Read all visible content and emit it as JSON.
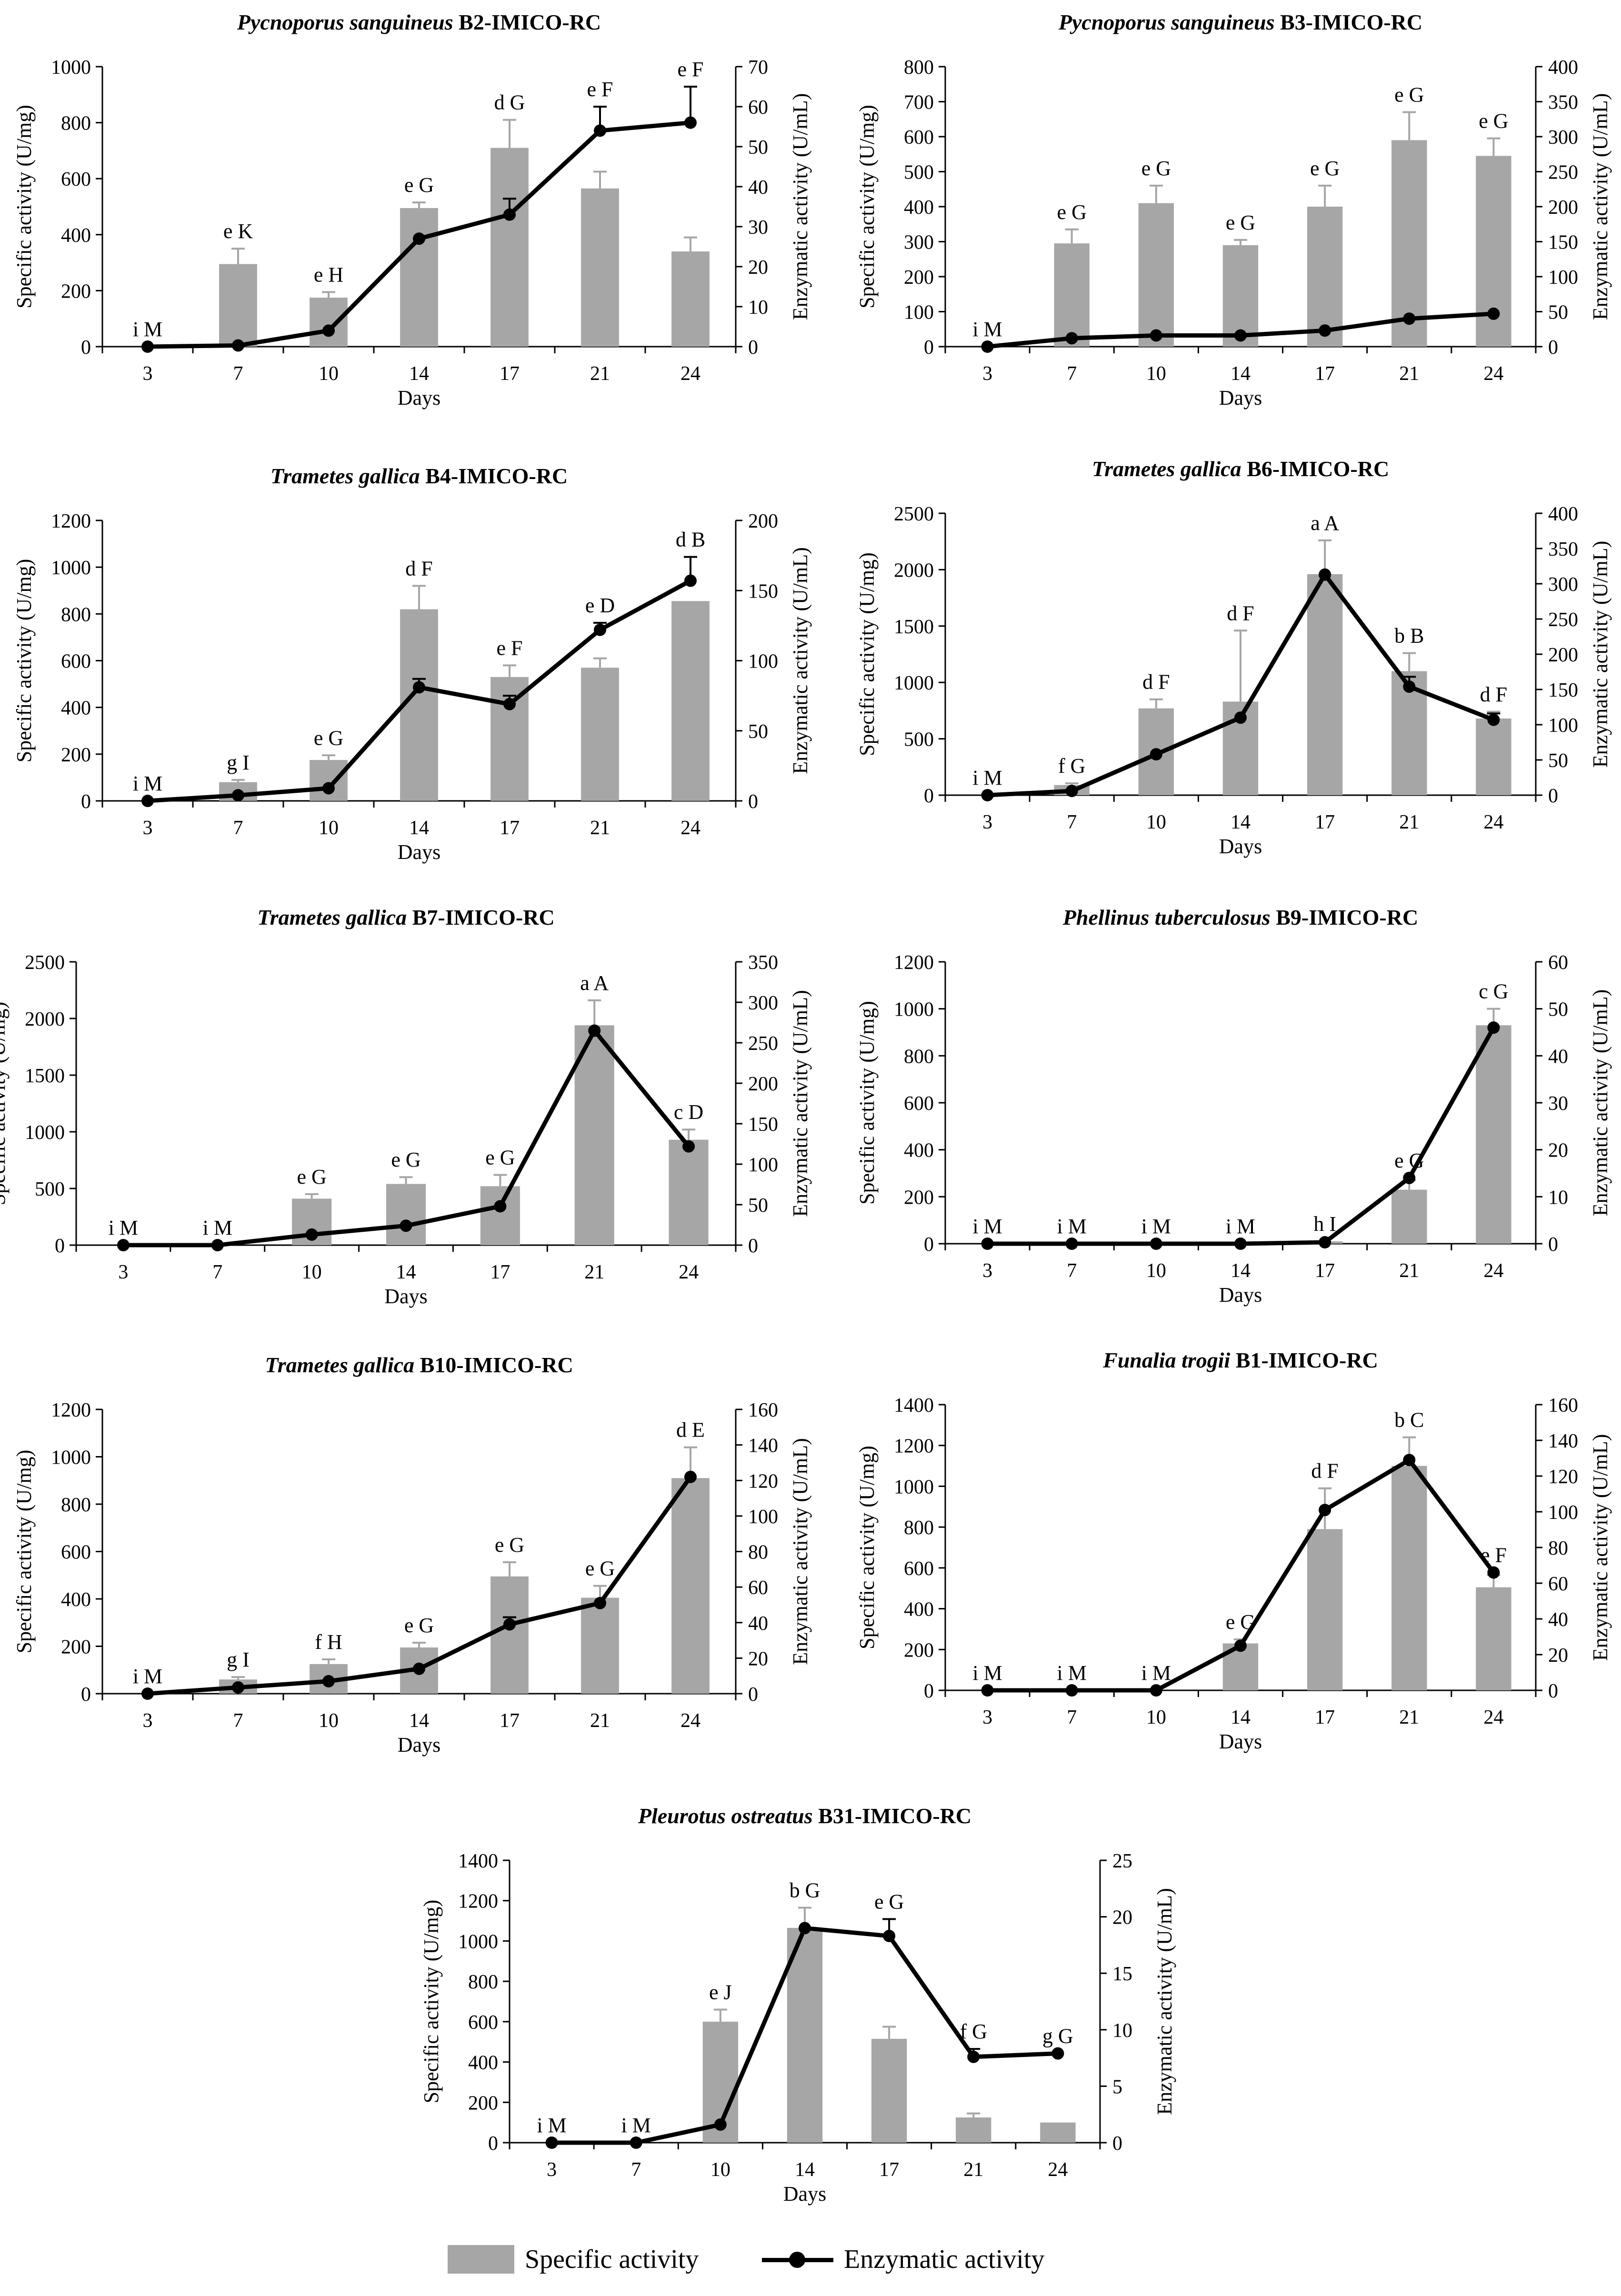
{
  "figure": {
    "legend": {
      "specific_label": "Specific activity",
      "enzymatic_label": "Enzymatic activity"
    }
  },
  "chart_data": [
    {
      "type": "bar+line",
      "title_italic": "Pycnoporus sanguineus",
      "title_bold": "B2-IMICO-RC",
      "xlabel": "Days",
      "ylabel_left": "Specific activity (U/mg)",
      "ylabel_right": "Enzymatic activity (U/mL)",
      "categories": [
        "3",
        "7",
        "10",
        "14",
        "17",
        "21",
        "24"
      ],
      "ylim_left": [
        0,
        1000
      ],
      "yticks_left": [
        0,
        200,
        400,
        600,
        800,
        1000
      ],
      "ylim_right": [
        0,
        70
      ],
      "yticks_right": [
        0,
        10,
        20,
        30,
        40,
        50,
        60,
        70
      ],
      "series": [
        {
          "name": "Specific activity",
          "axis": "left",
          "values": [
            0,
            295,
            175,
            495,
            710,
            565,
            340
          ],
          "errors": [
            0,
            55,
            20,
            20,
            100,
            60,
            50
          ],
          "labels": [
            "i",
            "e",
            "e",
            "e",
            "d",
            "e",
            "e"
          ]
        },
        {
          "name": "Enzymatic activity",
          "axis": "right",
          "values": [
            0,
            0.3,
            4,
            27,
            33,
            54,
            56
          ],
          "errors": [
            0,
            0,
            0,
            0,
            4,
            6,
            9
          ],
          "labels": [
            "M",
            "K",
            "H",
            "G",
            "G",
            "F",
            "F"
          ]
        }
      ]
    },
    {
      "type": "bar+line",
      "title_italic": "Pycnoporus sanguineus",
      "title_bold": "B3-IMICO-RC",
      "xlabel": "Days",
      "ylabel_left": "Specific activity (U/mg)",
      "ylabel_right": "Enzymatic activity (U/mL)",
      "categories": [
        "3",
        "7",
        "10",
        "14",
        "17",
        "21",
        "24"
      ],
      "ylim_left": [
        0,
        800
      ],
      "yticks_left": [
        0,
        100,
        200,
        300,
        400,
        500,
        600,
        700,
        800
      ],
      "ylim_right": [
        0,
        400
      ],
      "yticks_right": [
        0,
        50,
        100,
        150,
        200,
        250,
        300,
        350,
        400
      ],
      "series": [
        {
          "name": "Specific activity",
          "axis": "left",
          "values": [
            0,
            295,
            410,
            290,
            400,
            590,
            545
          ],
          "errors": [
            0,
            40,
            50,
            15,
            60,
            80,
            50
          ],
          "labels": [
            "i",
            "e",
            "e",
            "e",
            "e",
            "e",
            "e"
          ]
        },
        {
          "name": "Enzymatic activity",
          "axis": "right",
          "values": [
            0,
            12,
            16,
            16,
            23,
            40,
            47
          ],
          "errors": [
            0,
            0,
            0,
            0,
            0,
            0,
            0
          ],
          "labels": [
            "M",
            "G",
            "G",
            "G",
            "G",
            "G",
            "G"
          ]
        }
      ]
    },
    {
      "type": "bar+line",
      "title_italic": "Trametes gallica",
      "title_bold": "B4-IMICO-RC",
      "xlabel": "Days",
      "ylabel_left": "Specific activity (U/mg)",
      "ylabel_right": "Enzymatic activity (U/mL)",
      "categories": [
        "3",
        "7",
        "10",
        "14",
        "17",
        "21",
        "24"
      ],
      "ylim_left": [
        0,
        1200
      ],
      "yticks_left": [
        0,
        200,
        400,
        600,
        800,
        1000,
        1200
      ],
      "ylim_right": [
        0,
        200
      ],
      "yticks_right": [
        0,
        50,
        100,
        150,
        200
      ],
      "series": [
        {
          "name": "Specific activity",
          "axis": "left",
          "values": [
            0,
            80,
            175,
            820,
            530,
            570,
            855
          ],
          "errors": [
            0,
            10,
            20,
            100,
            50,
            40,
            0
          ],
          "labels": [
            "i",
            "g",
            "e",
            "d",
            "e",
            "e",
            "d"
          ]
        },
        {
          "name": "Enzymatic activity",
          "axis": "right",
          "values": [
            0,
            4,
            9,
            81,
            69,
            122,
            157
          ],
          "errors": [
            0,
            0,
            0,
            6,
            6,
            5,
            17
          ],
          "labels": [
            "M",
            "I",
            "G",
            "F",
            "F",
            "D",
            "B"
          ]
        }
      ]
    },
    {
      "type": "bar+line",
      "title_italic": "Trametes gallica",
      "title_bold": "B6-IMICO-RC",
      "xlabel": "Days",
      "ylabel_left": "Specific activity (U/mg)",
      "ylabel_right": "Enzymatic activity (U/mL)",
      "categories": [
        "3",
        "7",
        "10",
        "14",
        "17",
        "21",
        "24"
      ],
      "ylim_left": [
        0,
        2500
      ],
      "yticks_left": [
        0,
        500,
        1000,
        1500,
        2000,
        2500
      ],
      "ylim_right": [
        0,
        400
      ],
      "yticks_right": [
        0,
        50,
        100,
        150,
        200,
        250,
        300,
        350,
        400
      ],
      "series": [
        {
          "name": "Specific activity",
          "axis": "left",
          "values": [
            0,
            90,
            770,
            830,
            1960,
            1100,
            680
          ],
          "errors": [
            0,
            15,
            80,
            630,
            300,
            160,
            60
          ],
          "labels": [
            "i",
            "f",
            "d",
            "d",
            "a",
            "b",
            "d"
          ]
        },
        {
          "name": "Enzymatic activity",
          "axis": "right",
          "values": [
            0,
            6,
            58,
            110,
            313,
            154,
            107
          ],
          "errors": [
            0,
            0,
            0,
            0,
            0,
            14,
            9
          ],
          "labels": [
            "M",
            "G",
            "F",
            "F",
            "A",
            "B",
            "F"
          ]
        }
      ]
    },
    {
      "type": "bar+line",
      "title_italic": "Trametes gallica",
      "title_bold": "B7-IMICO-RC",
      "xlabel": "Days",
      "ylabel_left": "Specific activity (U/mg)",
      "ylabel_right": "Enzymatic activity (U/mL)",
      "categories": [
        "3",
        "7",
        "10",
        "14",
        "17",
        "21",
        "24"
      ],
      "ylim_left": [
        0,
        2500
      ],
      "yticks_left": [
        0,
        500,
        1000,
        1500,
        2000,
        2500
      ],
      "ylim_right": [
        0,
        350
      ],
      "yticks_right": [
        0,
        50,
        100,
        150,
        200,
        250,
        300,
        350
      ],
      "series": [
        {
          "name": "Specific activity",
          "axis": "left",
          "values": [
            0,
            0,
            410,
            540,
            520,
            1940,
            930
          ],
          "errors": [
            0,
            0,
            40,
            60,
            100,
            220,
            90
          ],
          "labels": [
            "i",
            "i",
            "e",
            "e",
            "e",
            "a",
            "c"
          ]
        },
        {
          "name": "Enzymatic activity",
          "axis": "right",
          "values": [
            0,
            0,
            13,
            24,
            48,
            265,
            122
          ],
          "errors": [
            0,
            0,
            0,
            0,
            0,
            0,
            0
          ],
          "labels": [
            "M",
            "M",
            "G",
            "G",
            "G",
            "A",
            "D"
          ]
        }
      ]
    },
    {
      "type": "bar+line",
      "title_italic": "Phellinus tuberculosus",
      "title_bold": "B9-IMICO-RC",
      "xlabel": "Days",
      "ylabel_left": "Specific activity (U/mg)",
      "ylabel_right": "Enzymatic activity (U/mL)",
      "categories": [
        "3",
        "7",
        "10",
        "14",
        "17",
        "21",
        "24"
      ],
      "ylim_left": [
        0,
        1200
      ],
      "yticks_left": [
        0,
        200,
        400,
        600,
        800,
        1000,
        1200
      ],
      "ylim_right": [
        0,
        60
      ],
      "yticks_right": [
        0,
        10,
        20,
        30,
        40,
        50,
        60
      ],
      "series": [
        {
          "name": "Specific activity",
          "axis": "left",
          "values": [
            0,
            0,
            0,
            0,
            10,
            230,
            930
          ],
          "errors": [
            0,
            0,
            0,
            0,
            0,
            40,
            70
          ],
          "labels": [
            "i",
            "i",
            "i",
            "i",
            "h",
            "e",
            "c"
          ]
        },
        {
          "name": "Enzymatic activity",
          "axis": "right",
          "values": [
            0,
            0,
            0,
            0,
            0.3,
            14,
            46
          ],
          "errors": [
            0,
            0,
            0,
            0,
            0,
            0,
            0
          ],
          "labels": [
            "M",
            "M",
            "M",
            "M",
            "I",
            "G",
            "G"
          ]
        }
      ]
    },
    {
      "type": "bar+line",
      "title_italic": "Trametes gallica",
      "title_bold": "B10-IMICO-RC",
      "xlabel": "Days",
      "ylabel_left": "Specific activity (U/mg)",
      "ylabel_right": "Enzymatic activity (U/mL)",
      "categories": [
        "3",
        "7",
        "10",
        "14",
        "17",
        "21",
        "24"
      ],
      "ylim_left": [
        0,
        1200
      ],
      "yticks_left": [
        0,
        200,
        400,
        600,
        800,
        1000,
        1200
      ],
      "ylim_right": [
        0,
        160
      ],
      "yticks_right": [
        0,
        20,
        40,
        60,
        80,
        100,
        120,
        140,
        160
      ],
      "series": [
        {
          "name": "Specific activity",
          "axis": "left",
          "values": [
            0,
            60,
            125,
            195,
            495,
            405,
            910
          ],
          "errors": [
            0,
            10,
            20,
            20,
            60,
            50,
            130
          ],
          "labels": [
            "i",
            "g",
            "f",
            "e",
            "e",
            "e",
            "d"
          ]
        },
        {
          "name": "Enzymatic activity",
          "axis": "right",
          "values": [
            0,
            3.5,
            7,
            14,
            39,
            51,
            122
          ],
          "errors": [
            0,
            0,
            0,
            0,
            4,
            0,
            0
          ],
          "labels": [
            "M",
            "I",
            "H",
            "G",
            "G",
            "G",
            "E"
          ]
        }
      ]
    },
    {
      "type": "bar+line",
      "title_italic": "Funalia trogii",
      "title_bold": "B1-IMICO-RC",
      "xlabel": "Days",
      "ylabel_left": "Specific activity (U/mg)",
      "ylabel_right": "Enzymatic activity (U/mL)",
      "categories": [
        "3",
        "7",
        "10",
        "14",
        "17",
        "21",
        "24"
      ],
      "ylim_left": [
        0,
        1400
      ],
      "yticks_left": [
        0,
        200,
        400,
        600,
        800,
        1000,
        1200,
        1400
      ],
      "ylim_right": [
        0,
        160
      ],
      "yticks_right": [
        0,
        20,
        40,
        60,
        80,
        100,
        120,
        140,
        160
      ],
      "series": [
        {
          "name": "Specific activity",
          "axis": "left",
          "values": [
            0,
            0,
            0,
            230,
            790,
            1100,
            505
          ],
          "errors": [
            0,
            0,
            0,
            20,
            200,
            140,
            60
          ],
          "labels": [
            "i",
            "i",
            "i",
            "e",
            "d",
            "b",
            "e"
          ]
        },
        {
          "name": "Enzymatic activity",
          "axis": "right",
          "values": [
            0,
            0,
            0,
            25,
            101,
            129,
            66
          ],
          "errors": [
            0,
            0,
            0,
            0,
            0,
            0,
            0
          ],
          "labels": [
            "M",
            "M",
            "M",
            "G",
            "F",
            "C",
            "F"
          ]
        }
      ]
    },
    {
      "type": "bar+line",
      "title_italic": "Pleurotus ostreatus",
      "title_bold": "B31-IMICO-RC",
      "xlabel": "Days",
      "ylabel_left": "Specific activity (U/mg)",
      "ylabel_right": "Enzymatic activity (U/mL)",
      "categories": [
        "3",
        "7",
        "10",
        "14",
        "17",
        "21",
        "24"
      ],
      "ylim_left": [
        0,
        1400
      ],
      "yticks_left": [
        0,
        200,
        400,
        600,
        800,
        1000,
        1200,
        1400
      ],
      "ylim_right": [
        0,
        25
      ],
      "yticks_right": [
        0,
        5,
        10,
        15,
        20,
        25
      ],
      "series": [
        {
          "name": "Specific activity",
          "axis": "left",
          "values": [
            0,
            0,
            600,
            1065,
            515,
            125,
            100
          ],
          "errors": [
            0,
            0,
            60,
            100,
            60,
            20,
            0
          ],
          "labels": [
            "i",
            "i",
            "e",
            "b",
            "e",
            "f",
            "g"
          ]
        },
        {
          "name": "Enzymatic activity",
          "axis": "right",
          "values": [
            0,
            0,
            1.6,
            19,
            18.3,
            7.6,
            7.9
          ],
          "errors": [
            0,
            0,
            0,
            0,
            1.5,
            0.7,
            0
          ],
          "labels": [
            "M",
            "M",
            "J",
            "G",
            "G",
            "G",
            "G"
          ]
        }
      ]
    }
  ]
}
